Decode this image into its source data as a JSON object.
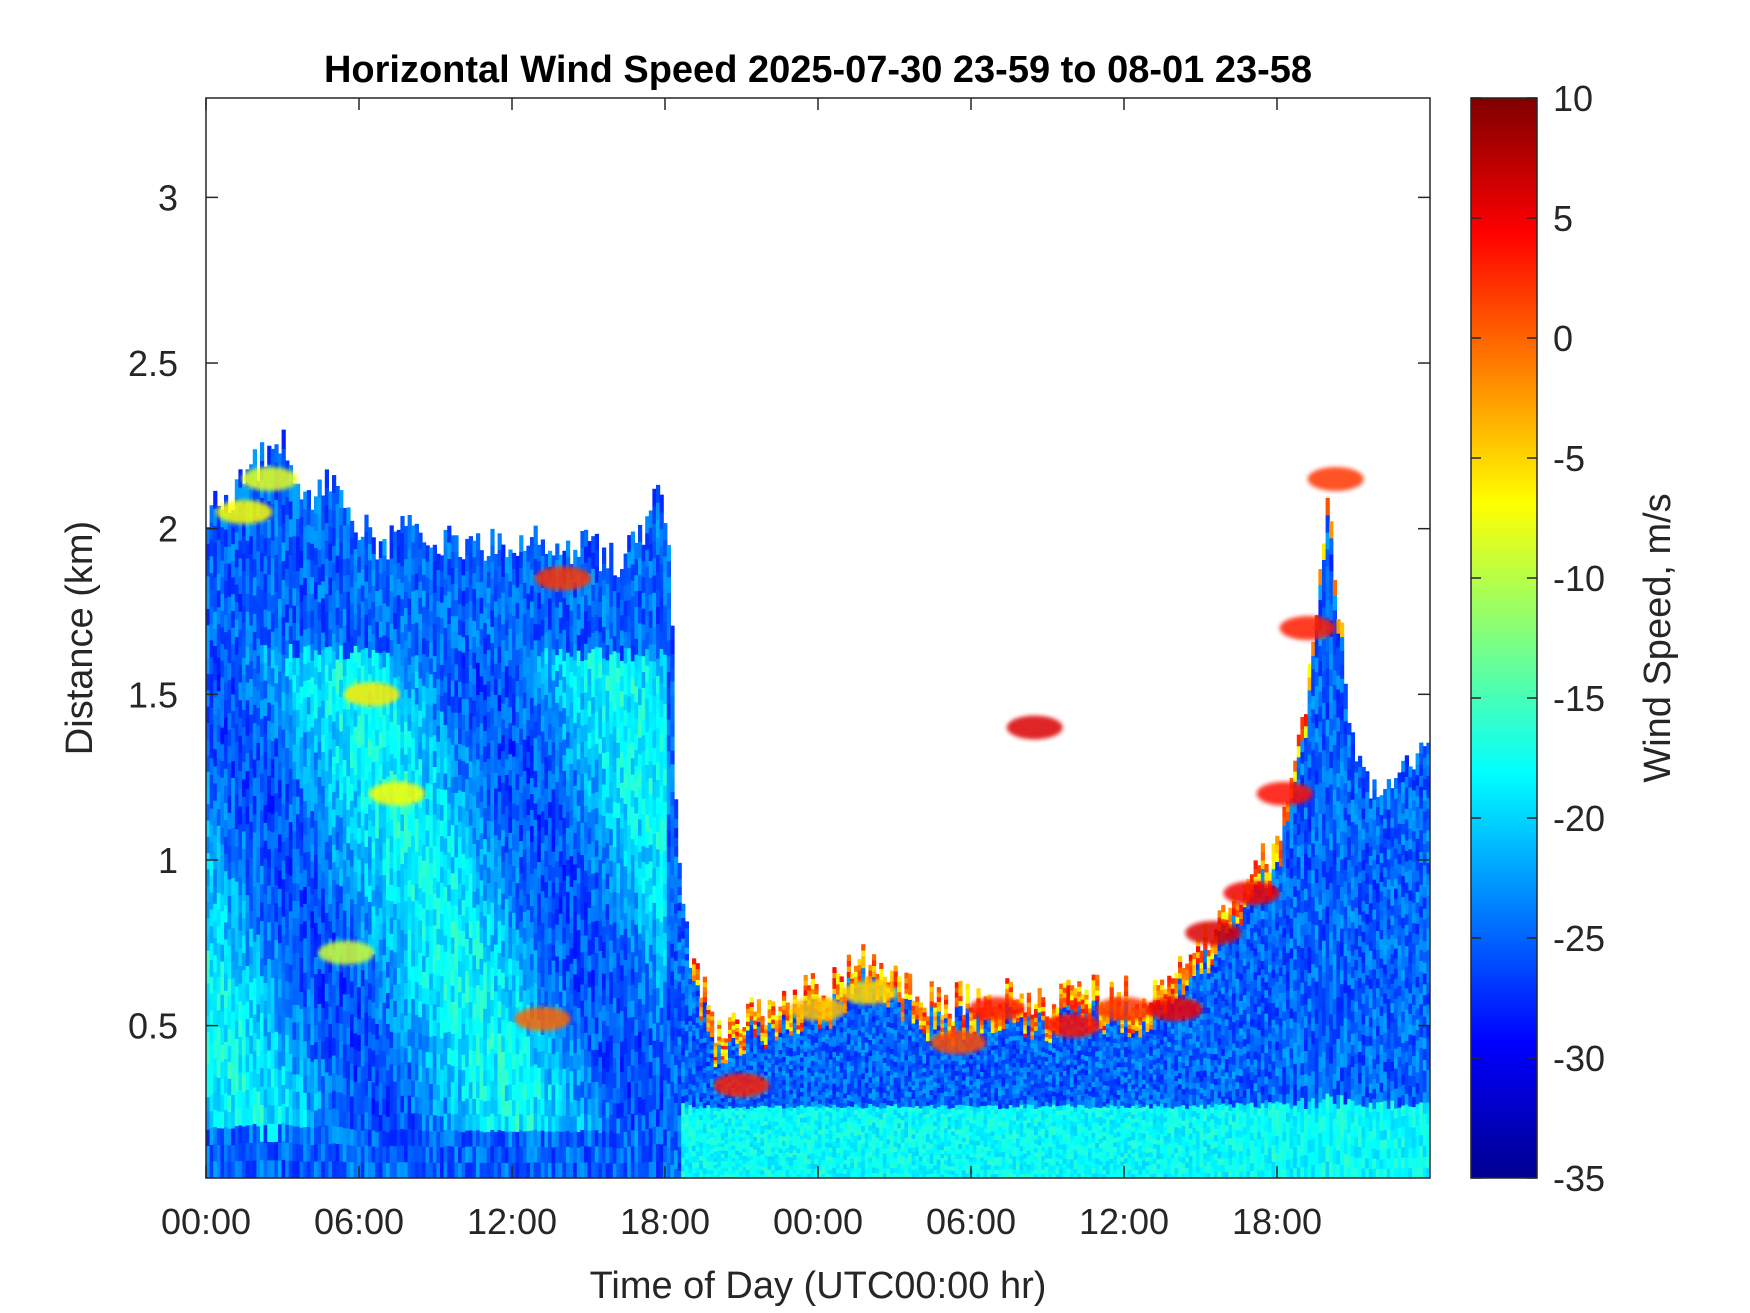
{
  "chart_data": {
    "type": "heatmap",
    "title": "Horizontal Wind Speed 2025-07-30 23-59 to 08-01 23-58",
    "xlabel": "Time of Day (UTC00:00 hr)",
    "ylabel": "Distance (km)",
    "x_unit": "hours since start",
    "xlim": [
      0,
      48
    ],
    "ylim": [
      0.04,
      3.3
    ],
    "x_ticks": [
      0,
      6,
      12,
      18,
      24,
      30,
      36,
      42
    ],
    "x_tick_labels": [
      "00:00",
      "06:00",
      "12:00",
      "18:00",
      "00:00",
      "06:00",
      "12:00",
      "18:00"
    ],
    "y_ticks": [
      0.5,
      1,
      1.5,
      2,
      2.5,
      3
    ],
    "y_tick_labels": [
      "0.5",
      "1",
      "1.5",
      "2",
      "2.5",
      "3"
    ],
    "colorbar": {
      "label": "Wind Speed, m/s",
      "colormap": "jet",
      "limits": [
        -35,
        10
      ],
      "ticks": [
        10,
        5,
        0,
        -5,
        -10,
        -15,
        -20,
        -25,
        -30,
        -35
      ],
      "tick_labels": [
        "10",
        "5",
        "0",
        "-5",
        "-10",
        "-15",
        "-20",
        "-25",
        "-30",
        "-35"
      ]
    },
    "grid": false,
    "profile_top_km": [
      [
        0,
        2.05
      ],
      [
        1,
        2.1
      ],
      [
        2,
        2.2
      ],
      [
        3,
        2.25
      ],
      [
        4,
        2.1
      ],
      [
        5,
        2.15
      ],
      [
        6,
        2.0
      ],
      [
        7,
        1.95
      ],
      [
        8,
        2.0
      ],
      [
        9,
        1.95
      ],
      [
        10,
        1.95
      ],
      [
        11,
        1.95
      ],
      [
        12,
        1.95
      ],
      [
        13,
        1.95
      ],
      [
        14,
        1.95
      ],
      [
        15,
        1.95
      ],
      [
        16,
        1.9
      ],
      [
        17,
        1.95
      ],
      [
        17.7,
        2.2
      ],
      [
        18.2,
        1.9
      ],
      [
        18.5,
        1.0
      ],
      [
        19,
        0.7
      ],
      [
        20,
        0.5
      ],
      [
        21,
        0.55
      ],
      [
        22,
        0.55
      ],
      [
        23,
        0.6
      ],
      [
        24,
        0.6
      ],
      [
        25,
        0.65
      ],
      [
        26,
        0.7
      ],
      [
        27,
        0.65
      ],
      [
        28,
        0.6
      ],
      [
        29,
        0.55
      ],
      [
        30,
        0.6
      ],
      [
        31,
        0.6
      ],
      [
        32,
        0.6
      ],
      [
        33,
        0.55
      ],
      [
        34,
        0.6
      ],
      [
        35,
        0.6
      ],
      [
        36,
        0.6
      ],
      [
        37,
        0.6
      ],
      [
        38,
        0.65
      ],
      [
        39,
        0.75
      ],
      [
        40,
        0.85
      ],
      [
        41,
        0.95
      ],
      [
        42,
        1.05
      ],
      [
        43,
        1.4
      ],
      [
        44,
        2.1
      ],
      [
        45,
        1.3
      ],
      [
        46,
        1.2
      ],
      [
        47,
        1.3
      ],
      [
        48,
        1.3
      ]
    ],
    "low_speed_layer": [
      {
        "x": 1.5,
        "y": 2.05,
        "speed": -7
      },
      {
        "x": 2.5,
        "y": 2.15,
        "speed": -8
      },
      {
        "x": 6.5,
        "y": 1.5,
        "speed": -6
      },
      {
        "x": 7.5,
        "y": 1.2,
        "speed": -7
      },
      {
        "x": 5.5,
        "y": 0.72,
        "speed": -9
      },
      {
        "x": 14,
        "y": 1.85,
        "speed": 2
      },
      {
        "x": 13.2,
        "y": 0.52,
        "speed": 0
      },
      {
        "x": 21,
        "y": 0.32,
        "speed": 3
      },
      {
        "x": 24,
        "y": 0.55,
        "speed": -4
      },
      {
        "x": 26,
        "y": 0.6,
        "speed": -5
      },
      {
        "x": 29.5,
        "y": 0.45,
        "speed": 1
      },
      {
        "x": 31,
        "y": 0.55,
        "speed": 3
      },
      {
        "x": 32.5,
        "y": 1.4,
        "speed": 6
      },
      {
        "x": 34,
        "y": 0.5,
        "speed": 4
      },
      {
        "x": 36,
        "y": 0.55,
        "speed": 2
      },
      {
        "x": 38,
        "y": 0.55,
        "speed": 5
      },
      {
        "x": 39.5,
        "y": 0.78,
        "speed": 6
      },
      {
        "x": 41,
        "y": 0.9,
        "speed": 5
      },
      {
        "x": 42.3,
        "y": 1.2,
        "speed": 4
      },
      {
        "x": 43.2,
        "y": 1.7,
        "speed": 3
      },
      {
        "x": 44.3,
        "y": 2.15,
        "speed": 2
      }
    ],
    "typical_background_speed": -25,
    "gusty_region_speed": -18
  }
}
